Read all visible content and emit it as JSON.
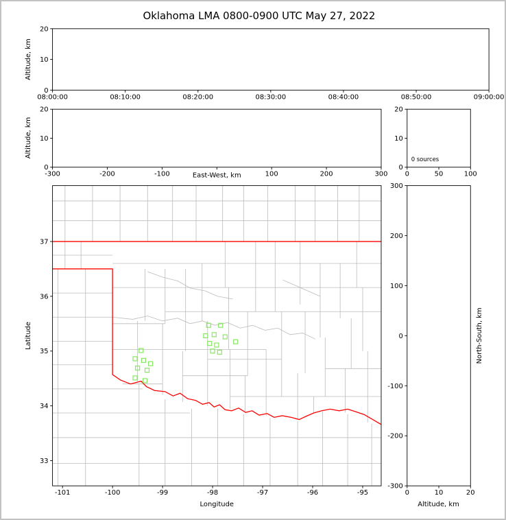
{
  "title": "Oklahoma LMA 0800-0900 UTC May 27, 2022",
  "colors": {
    "axis": "#000000",
    "county_line": "#bbbbbb",
    "state_border": "#ff0000",
    "station_marker": "#86e85f",
    "background": "#ffffff",
    "frame": "#c2c2c2"
  },
  "chart_data": [
    {
      "id": "time_height",
      "type": "scatter",
      "description": "Altitude vs time panel, no source points plotted",
      "ylabel": "Altitude, km",
      "xlabel": "",
      "xlim": [
        0,
        6
      ],
      "ylim": [
        0,
        20
      ],
      "xticks": {
        "values": [
          0,
          1,
          2,
          3,
          4,
          5,
          6
        ],
        "labels": [
          "08:00:00",
          "08:10:00",
          "08:20:00",
          "08:30:00",
          "08:40:00",
          "08:50:00",
          "09:00:00"
        ]
      },
      "yticks": {
        "values": [
          0,
          10,
          20
        ],
        "labels": [
          "0",
          "10",
          "20"
        ]
      },
      "points": []
    },
    {
      "id": "ew_height",
      "type": "scatter",
      "description": "Altitude vs east-west distance panel, no source points plotted",
      "ylabel": "Altitude, km",
      "xlabel": "East-West, km",
      "xlim": [
        -300,
        300
      ],
      "ylim": [
        0,
        20
      ],
      "xticks": {
        "values": [
          -300,
          -200,
          -100,
          0,
          100,
          200,
          300
        ],
        "labels": [
          "-300",
          "-200",
          "-100",
          "",
          "100",
          "200",
          "300"
        ]
      },
      "yticks": {
        "values": [
          0,
          10,
          20
        ],
        "labels": [
          "0",
          "10",
          "20"
        ]
      },
      "points": []
    },
    {
      "id": "alt_histogram",
      "type": "line",
      "description": "Altitude histogram panel, zero sources",
      "annotation": "0 sources",
      "xlabel": "",
      "ylabel": "",
      "xlim": [
        0,
        100
      ],
      "ylim": [
        0,
        20
      ],
      "xticks": {
        "values": [
          0,
          50,
          100
        ],
        "labels": [
          "0",
          "50",
          "100"
        ]
      },
      "yticks": {
        "values": [
          0,
          10,
          20
        ],
        "labels": [
          "0",
          "10",
          "20"
        ]
      },
      "points": []
    },
    {
      "id": "plan_view",
      "type": "map-scatter",
      "description": "Plan view map of Oklahoma with county lines, state border and LMA station markers",
      "xlabel": "Longitude",
      "ylabel": "Latitude",
      "xlim": [
        -101.2,
        -94.63
      ],
      "ylim": [
        32.54,
        38.02
      ],
      "xticks": {
        "values": [
          -101,
          -100,
          -99,
          -98,
          -97,
          -96,
          -95
        ],
        "labels": [
          "-101",
          "-100",
          "-99",
          "-98",
          "-97",
          "-96",
          "-95"
        ]
      },
      "yticks": {
        "values": [
          33,
          34,
          35,
          36,
          37
        ],
        "labels": [
          "33",
          "34",
          "35",
          "36",
          "37"
        ]
      },
      "stations": [
        [
          -99.43,
          35.01
        ],
        [
          -99.55,
          34.86
        ],
        [
          -99.38,
          34.83
        ],
        [
          -99.24,
          34.77
        ],
        [
          -99.5,
          34.69
        ],
        [
          -99.31,
          34.65
        ],
        [
          -99.55,
          34.51
        ],
        [
          -99.35,
          34.46
        ],
        [
          -98.08,
          35.47
        ],
        [
          -97.84,
          35.47
        ],
        [
          -98.14,
          35.28
        ],
        [
          -97.97,
          35.3
        ],
        [
          -97.75,
          35.26
        ],
        [
          -98.06,
          35.14
        ],
        [
          -97.92,
          35.11
        ],
        [
          -97.54,
          35.17
        ],
        [
          -98.0,
          35.0
        ],
        [
          -97.86,
          34.98
        ]
      ],
      "state_border": [
        [
          [
            -101.2,
            37.0
          ],
          [
            -94.63,
            37.0
          ]
        ],
        [
          [
            -94.618,
            37.0
          ],
          [
            -94.618,
            36.5
          ]
        ],
        [
          [
            -101.2,
            36.5
          ],
          [
            -100.0,
            36.5
          ],
          [
            -100.0,
            34.57
          ],
          [
            -99.84,
            34.47
          ],
          [
            -99.64,
            34.4
          ],
          [
            -99.43,
            34.45
          ],
          [
            -99.32,
            34.35
          ],
          [
            -99.16,
            34.28
          ],
          [
            -98.95,
            34.26
          ],
          [
            -98.79,
            34.18
          ],
          [
            -98.65,
            34.23
          ],
          [
            -98.5,
            34.13
          ],
          [
            -98.34,
            34.1
          ],
          [
            -98.2,
            34.03
          ],
          [
            -98.07,
            34.06
          ],
          [
            -97.97,
            33.98
          ],
          [
            -97.86,
            34.02
          ],
          [
            -97.75,
            33.93
          ],
          [
            -97.62,
            33.91
          ],
          [
            -97.48,
            33.96
          ],
          [
            -97.34,
            33.88
          ],
          [
            -97.21,
            33.91
          ],
          [
            -97.07,
            33.83
          ],
          [
            -96.91,
            33.86
          ],
          [
            -96.77,
            33.79
          ],
          [
            -96.61,
            33.82
          ],
          [
            -96.43,
            33.79
          ],
          [
            -96.27,
            33.75
          ],
          [
            -96.13,
            33.81
          ],
          [
            -95.98,
            33.87
          ],
          [
            -95.82,
            33.91
          ],
          [
            -95.65,
            33.94
          ],
          [
            -95.47,
            33.91
          ],
          [
            -95.3,
            33.94
          ],
          [
            -95.13,
            33.89
          ],
          [
            -94.97,
            33.84
          ],
          [
            -94.82,
            33.76
          ],
          [
            -94.63,
            33.66
          ]
        ]
      ],
      "counties_approx": {
        "v": [
          [
            -100.95,
            36.5,
            38.02
          ],
          [
            -100.63,
            36.5,
            37.0
          ],
          [
            -100.4,
            37.0,
            38.02
          ],
          [
            -99.85,
            37.0,
            38.02
          ],
          [
            -99.3,
            37.0,
            38.02
          ],
          [
            -98.8,
            37.0,
            38.02
          ],
          [
            -98.33,
            37.0,
            38.02
          ],
          [
            -97.8,
            37.0,
            38.02
          ],
          [
            -97.38,
            37.0,
            38.02
          ],
          [
            -96.9,
            37.0,
            38.02
          ],
          [
            -96.35,
            37.0,
            38.02
          ],
          [
            -95.95,
            37.0,
            38.02
          ],
          [
            -95.5,
            37.0,
            38.02
          ],
          [
            -95.07,
            37.0,
            38.02
          ],
          [
            -101.09,
            32.54,
            36.5
          ],
          [
            -100.54,
            32.54,
            36.5
          ],
          [
            -99.5,
            34.45,
            35.55
          ],
          [
            -99.35,
            35.55,
            36.5
          ],
          [
            -99.0,
            34.2,
            35.5
          ],
          [
            -98.95,
            35.5,
            36.5
          ],
          [
            -98.6,
            34.07,
            35.0
          ],
          [
            -98.54,
            35.0,
            36.5
          ],
          [
            -98.1,
            34.0,
            35.55
          ],
          [
            -98.21,
            35.55,
            36.6
          ],
          [
            -97.65,
            33.95,
            35.03
          ],
          [
            -97.68,
            35.03,
            36.16
          ],
          [
            -97.75,
            36.16,
            37.0
          ],
          [
            -97.35,
            33.9,
            34.55
          ],
          [
            -97.3,
            34.55,
            35.72
          ],
          [
            -97.14,
            35.72,
            37.0
          ],
          [
            -96.93,
            33.82,
            35.03
          ],
          [
            -96.62,
            34.17,
            35.72
          ],
          [
            -96.75,
            35.72,
            37.0
          ],
          [
            -96.3,
            33.75,
            34.6
          ],
          [
            -96.15,
            34.6,
            35.72
          ],
          [
            -96.25,
            35.85,
            37.0
          ],
          [
            -95.98,
            33.87,
            34.17
          ],
          [
            -95.75,
            34.17,
            35.25
          ],
          [
            -95.85,
            35.25,
            36.6
          ],
          [
            -95.35,
            33.88,
            34.68
          ],
          [
            -95.23,
            34.68,
            35.6
          ],
          [
            -95.45,
            35.6,
            36.6
          ],
          [
            -94.9,
            33.7,
            35.0
          ],
          [
            -95.0,
            35.0,
            36.16
          ],
          [
            -95.12,
            36.16,
            37.0
          ],
          [
            -99.47,
            32.54,
            34.4
          ],
          [
            -98.95,
            32.54,
            34.12
          ],
          [
            -98.42,
            32.54,
            33.95
          ],
          [
            -97.9,
            32.54,
            33.95
          ],
          [
            -97.38,
            32.54,
            33.85
          ],
          [
            -96.85,
            32.54,
            33.78
          ],
          [
            -96.3,
            32.54,
            33.72
          ],
          [
            -95.8,
            32.54,
            33.9
          ],
          [
            -95.3,
            32.54,
            33.85
          ],
          [
            -94.82,
            32.54,
            33.68
          ]
        ],
        "h": [
          [
            37.38,
            -101.2,
            -94.63
          ],
          [
            37.74,
            -101.2,
            -94.63
          ],
          [
            36.75,
            -101.2,
            -100.0
          ],
          [
            36.06,
            -101.2,
            -100.0
          ],
          [
            35.62,
            -101.2,
            -100.0
          ],
          [
            35.18,
            -101.2,
            -100.0
          ],
          [
            34.75,
            -101.2,
            -100.0
          ],
          [
            34.31,
            -101.2,
            -99.4
          ],
          [
            33.87,
            -101.2,
            -98.45
          ],
          [
            33.42,
            -101.2,
            -94.63
          ],
          [
            32.95,
            -101.2,
            -94.63
          ],
          [
            36.6,
            -100.0,
            -94.63
          ],
          [
            36.16,
            -100.0,
            -94.63
          ],
          [
            35.72,
            -98.95,
            -94.63
          ],
          [
            35.5,
            -100.0,
            -98.95
          ],
          [
            35.03,
            -100.0,
            -96.93
          ],
          [
            34.85,
            -98.1,
            -96.62
          ],
          [
            34.55,
            -98.6,
            -97.3
          ],
          [
            34.68,
            -95.75,
            -94.63
          ],
          [
            34.17,
            -97.65,
            -94.63
          ],
          [
            34.4,
            -99.8,
            -99.0
          ]
        ],
        "wiggly": [
          [
            [
              -100.0,
              35.62
            ],
            [
              -99.6,
              35.58
            ],
            [
              -99.3,
              35.64
            ],
            [
              -99.0,
              35.55
            ],
            [
              -98.7,
              35.6
            ],
            [
              -98.45,
              35.5
            ],
            [
              -98.2,
              35.55
            ],
            [
              -97.95,
              35.47
            ],
            [
              -97.7,
              35.52
            ],
            [
              -97.45,
              35.42
            ],
            [
              -97.2,
              35.47
            ],
            [
              -96.95,
              35.38
            ],
            [
              -96.7,
              35.42
            ],
            [
              -96.45,
              35.3
            ],
            [
              -96.2,
              35.33
            ],
            [
              -95.95,
              35.22
            ]
          ],
          [
            [
              -99.3,
              36.45
            ],
            [
              -99.0,
              36.35
            ],
            [
              -98.7,
              36.28
            ],
            [
              -98.45,
              36.15
            ],
            [
              -98.15,
              36.1
            ],
            [
              -97.9,
              36.0
            ],
            [
              -97.6,
              35.95
            ]
          ],
          [
            [
              -96.6,
              36.3
            ],
            [
              -96.35,
              36.2
            ],
            [
              -96.1,
              36.1
            ],
            [
              -95.85,
              36.0
            ]
          ]
        ]
      }
    },
    {
      "id": "ns_height",
      "type": "scatter",
      "description": "North-south distance vs altitude panel, no source points plotted",
      "xlabel": "Altitude, km",
      "ylabel": "North-South, km",
      "xlim": [
        0,
        20
      ],
      "ylim": [
        -300,
        300
      ],
      "xticks": {
        "values": [
          0,
          10,
          20
        ],
        "labels": [
          "0",
          "10",
          "20"
        ]
      },
      "yticks": {
        "values": [
          -300,
          -200,
          -100,
          0,
          100,
          200,
          300
        ],
        "labels": [
          "-300",
          "-200",
          "-100",
          "0",
          "100",
          "200",
          "300"
        ]
      },
      "points": []
    }
  ]
}
